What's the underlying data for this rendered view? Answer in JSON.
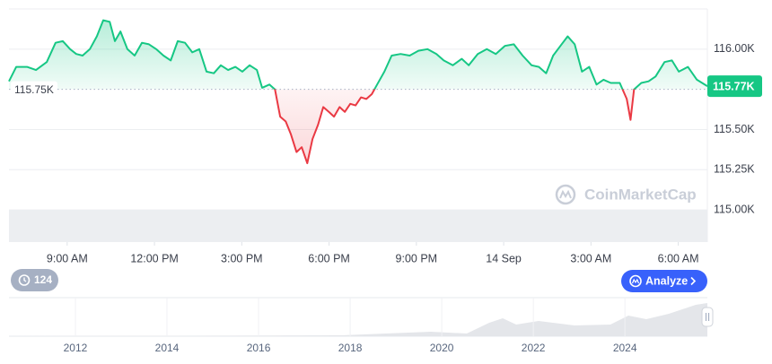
{
  "chart_data": {
    "type": "line",
    "x": [
      0.0,
      0.25,
      0.62,
      0.93,
      1.3,
      1.6,
      1.85,
      2.1,
      2.31,
      2.53,
      2.78,
      3.02,
      3.24,
      3.46,
      3.64,
      3.83,
      4.07,
      4.32,
      4.57,
      4.81,
      5.06,
      5.31,
      5.56,
      5.8,
      6.05,
      6.3,
      6.54,
      6.79,
      7.04,
      7.28,
      7.53,
      7.78,
      8.02,
      8.27,
      8.52,
      8.7,
      8.95,
      9.14,
      9.32,
      9.51,
      9.69,
      9.88,
      10.06,
      10.25,
      10.43,
      10.62,
      10.8,
      10.99,
      11.17,
      11.36,
      11.54,
      11.73,
      11.91,
      12.1,
      12.28,
      12.47,
      12.65,
      12.9,
      13.15,
      13.46,
      13.77,
      14.07,
      14.38,
      14.69,
      14.94,
      15.25,
      15.56,
      15.8,
      16.11,
      16.42,
      16.73,
      17.04,
      17.35,
      17.65,
      17.96,
      18.21,
      18.46,
      18.7,
      18.95,
      19.2,
      19.44,
      19.69,
      19.94,
      20.19,
      20.43,
      20.68,
      20.99,
      21.23,
      21.36,
      21.48,
      21.73,
      21.98,
      22.22,
      22.53,
      22.78,
      23.02,
      23.33,
      23.64,
      24.0
    ],
    "values": [
      115.8,
      115.89,
      115.89,
      115.87,
      115.92,
      116.04,
      116.05,
      116.0,
      115.97,
      115.96,
      116.0,
      116.08,
      116.18,
      116.17,
      116.05,
      116.11,
      116.0,
      115.96,
      116.04,
      116.03,
      116.0,
      115.96,
      115.93,
      116.05,
      116.04,
      115.98,
      116.0,
      115.86,
      115.85,
      115.9,
      115.87,
      115.89,
      115.86,
      115.9,
      115.87,
      115.76,
      115.78,
      115.75,
      115.58,
      115.55,
      115.47,
      115.36,
      115.39,
      115.29,
      115.44,
      115.53,
      115.64,
      115.61,
      115.58,
      115.64,
      115.61,
      115.66,
      115.65,
      115.7,
      115.69,
      115.72,
      115.78,
      115.86,
      115.96,
      115.97,
      115.96,
      115.99,
      116.0,
      115.97,
      115.93,
      115.9,
      115.94,
      115.9,
      115.97,
      116.0,
      115.97,
      116.02,
      116.03,
      115.96,
      115.9,
      115.89,
      115.85,
      115.96,
      116.02,
      116.08,
      116.03,
      115.86,
      115.89,
      115.78,
      115.81,
      115.79,
      115.79,
      115.69,
      115.56,
      115.75,
      115.79,
      115.8,
      115.83,
      115.92,
      115.93,
      115.86,
      115.89,
      115.81,
      115.77
    ],
    "xlim": [
      0,
      24
    ],
    "xticks": [
      {
        "value": 2,
        "label": "9:00 AM"
      },
      {
        "value": 5,
        "label": "12:00 PM"
      },
      {
        "value": 8,
        "label": "3:00 PM"
      },
      {
        "value": 11,
        "label": "6:00 PM"
      },
      {
        "value": 14,
        "label": "9:00 PM"
      },
      {
        "value": 17,
        "label": "14 Sep"
      },
      {
        "value": 20,
        "label": "3:00 AM"
      },
      {
        "value": 23,
        "label": "6:00 AM"
      }
    ],
    "ylim": [
      114.8,
      116.25
    ],
    "yticks": [
      {
        "value": 115,
        "label": "115.00K"
      },
      {
        "value": 115.25,
        "label": "115.25K"
      },
      {
        "value": 115.5,
        "label": "115.50K"
      },
      {
        "value": 116,
        "label": "116.00K"
      }
    ],
    "baseline": {
      "value": 115.75,
      "label": "115.75K"
    },
    "last_price": {
      "value": 115.77,
      "label": "115.77K"
    },
    "color_up": "#16c784",
    "color_down": "#ea3943",
    "grid": true
  },
  "navigator": {
    "xlim": [
      2010.55,
      2025.8
    ],
    "xticks": [
      2012,
      2014,
      2016,
      2018,
      2020,
      2022,
      2024
    ]
  },
  "ui": {
    "history_count": 124,
    "analyze_button": "Analyze",
    "watermark": "CoinMarketCap"
  }
}
